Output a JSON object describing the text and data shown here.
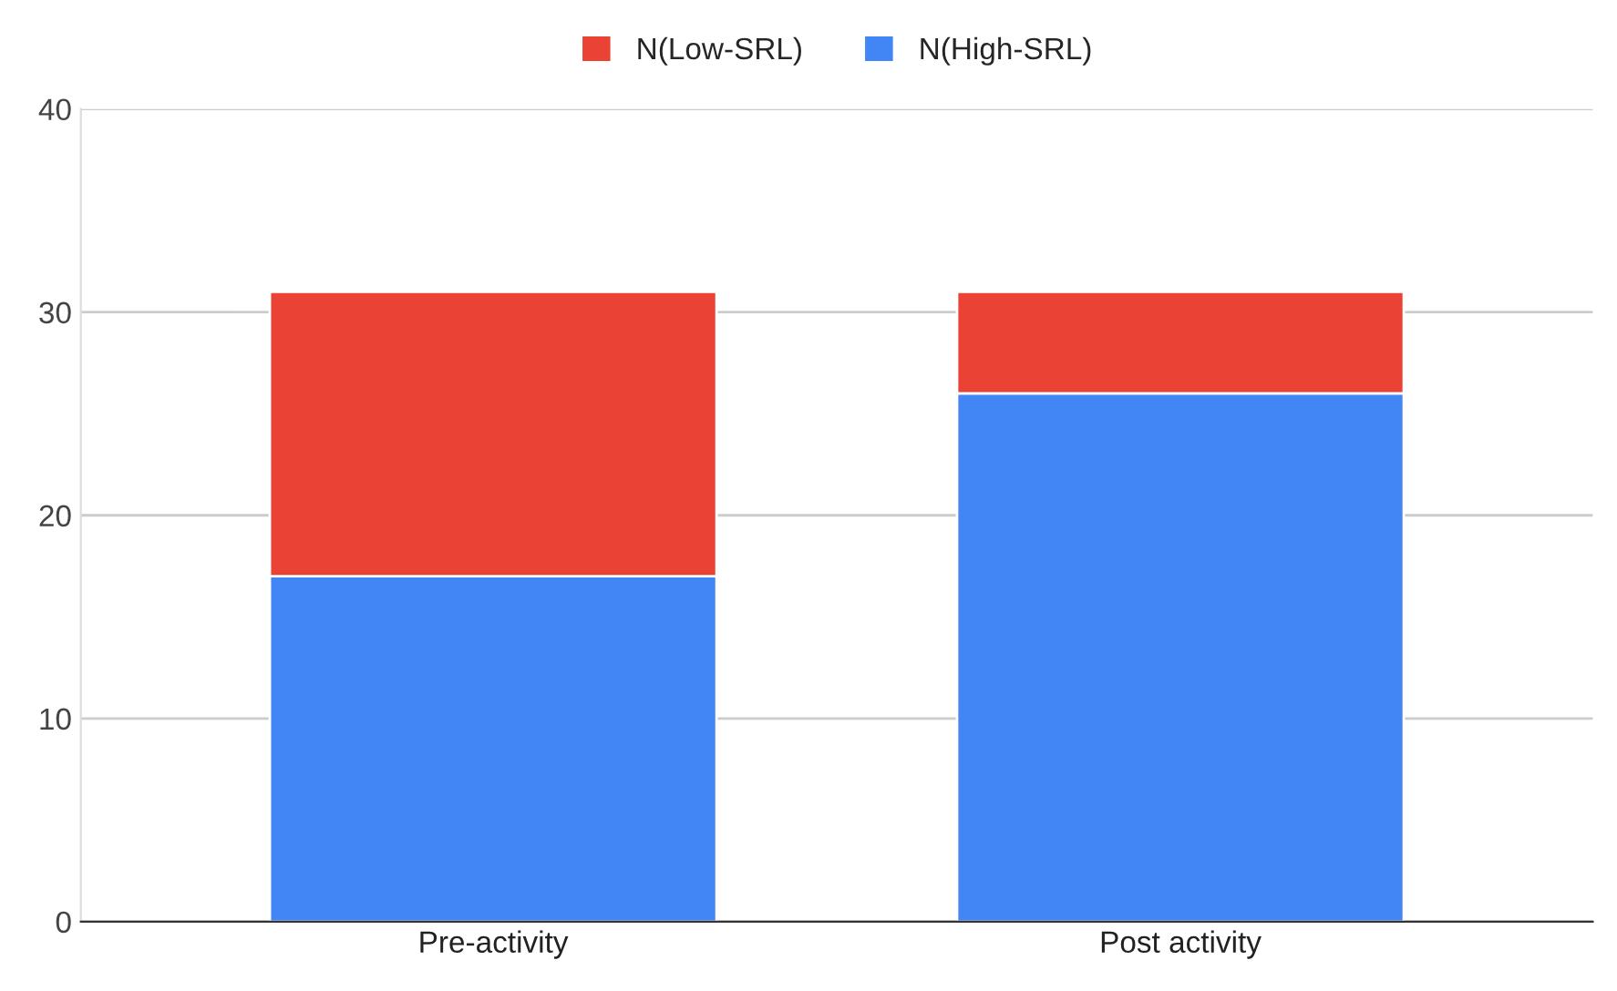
{
  "chart_data": {
    "type": "bar",
    "stacked": true,
    "categories": [
      "Pre-activity",
      "Post activity"
    ],
    "series": [
      {
        "name": "N(High-SRL)",
        "color": "#4285f4",
        "values": [
          17,
          26
        ]
      },
      {
        "name": "N(Low-SRL)",
        "color": "#ea4335",
        "values": [
          14,
          5
        ]
      }
    ],
    "ylim": [
      0,
      40
    ],
    "yticks": [
      0,
      10,
      20,
      30,
      40
    ],
    "grid": "y",
    "legend": "top"
  }
}
